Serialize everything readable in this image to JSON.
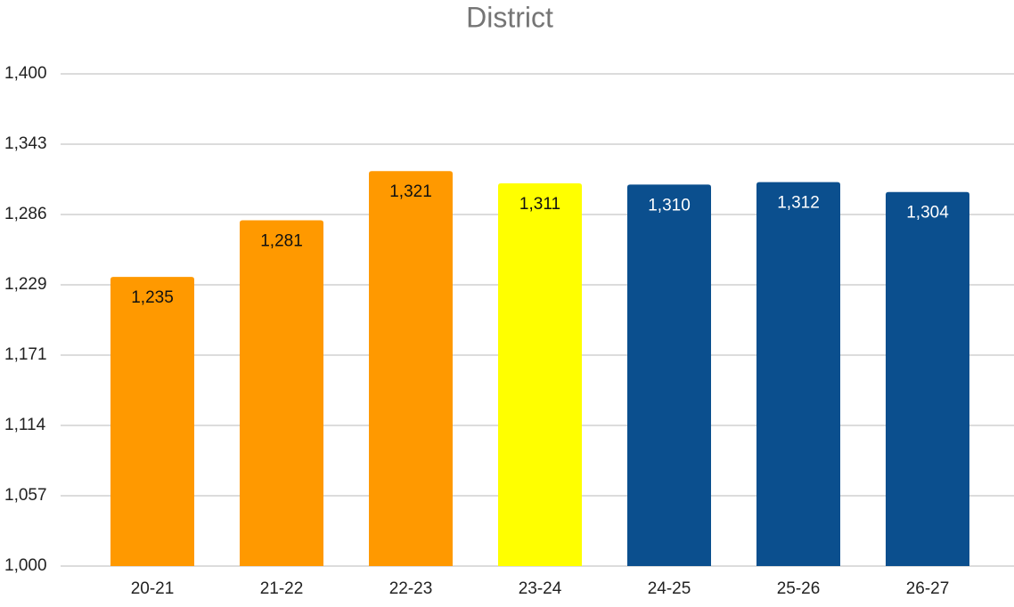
{
  "chart_data": {
    "type": "bar",
    "title": "District",
    "categories": [
      "20-21",
      "21-22",
      "22-23",
      "23-24",
      "24-25",
      "25-26",
      "26-27"
    ],
    "values": [
      1235,
      1281,
      1321,
      1311,
      1310,
      1312,
      1304
    ],
    "value_labels": [
      "1,235",
      "1,281",
      "1,321",
      "1,311",
      "1,310",
      "1,312",
      "1,304"
    ],
    "colors": [
      "#ff9900",
      "#ff9900",
      "#ff9900",
      "#ffff00",
      "#0b4f8e",
      "#0b4f8e",
      "#0b4f8e"
    ],
    "ylim": [
      1000,
      1400
    ],
    "yticks": [
      {
        "value": 1000,
        "label": "1,000"
      },
      {
        "value": 1057.14,
        "label": "1,057"
      },
      {
        "value": 1114.29,
        "label": "1,114"
      },
      {
        "value": 1171.43,
        "label": "1,171"
      },
      {
        "value": 1228.57,
        "label": "1,229"
      },
      {
        "value": 1285.71,
        "label": "1,286"
      },
      {
        "value": 1342.86,
        "label": "1,343"
      },
      {
        "value": 1400,
        "label": "1,400"
      }
    ],
    "grid": true
  }
}
